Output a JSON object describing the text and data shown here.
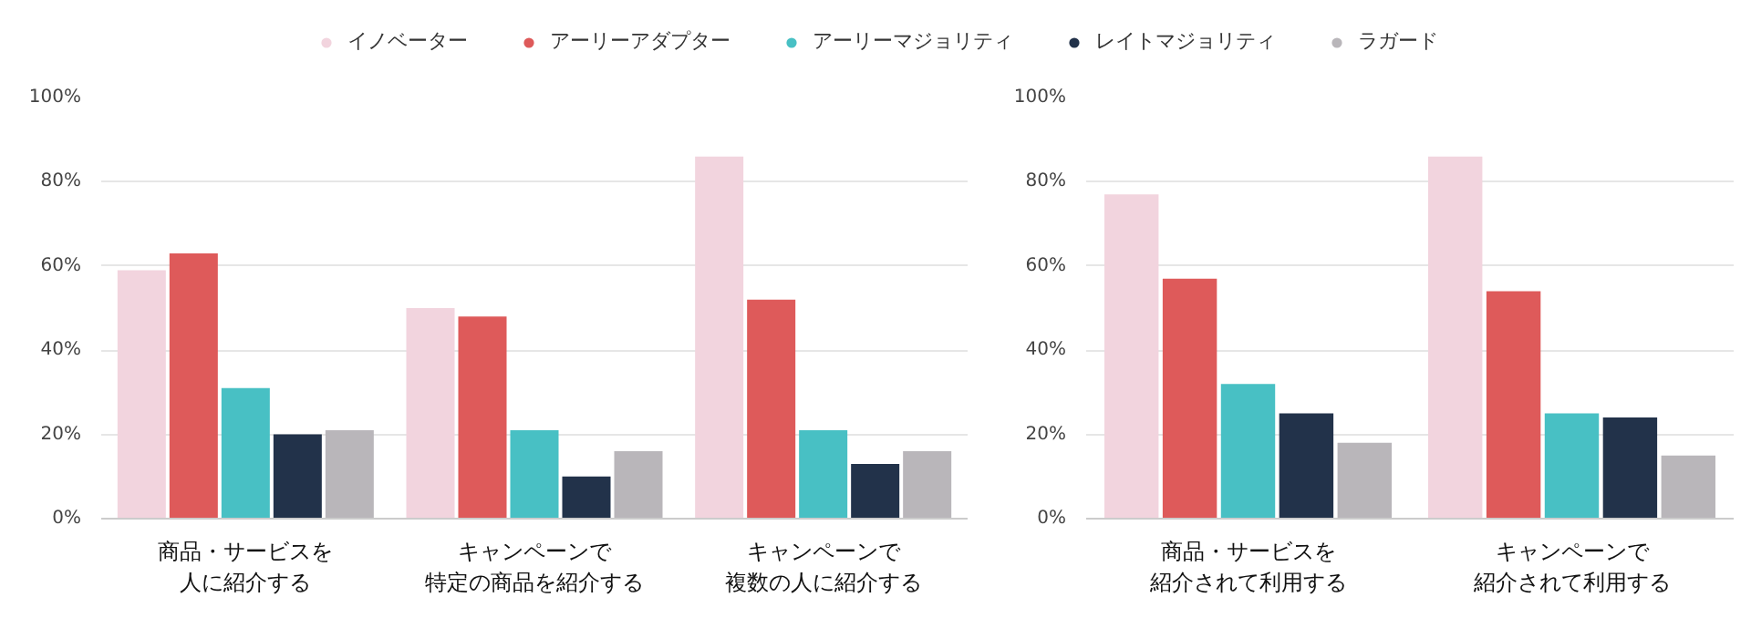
{
  "chart_data": [
    {
      "type": "bar",
      "categories": [
        "商品・サービスを人に紹介する",
        "キャンペーンで特定の商品を紹介する",
        "キャンペーンで複数の人に紹介する"
      ],
      "series": [
        {
          "name": "イノベーター",
          "color": "#f2d4de",
          "values": [
            59,
            50,
            86
          ]
        },
        {
          "name": "アーリーアダプター",
          "color": "#de5a5a",
          "values": [
            63,
            48,
            52
          ]
        },
        {
          "name": "アーリーマジョリティ",
          "color": "#48c0c4",
          "values": [
            31,
            21,
            21
          ]
        },
        {
          "name": "レイトマジョリティ",
          "color": "#22324a",
          "values": [
            20,
            10,
            13
          ]
        },
        {
          "name": "ラガード",
          "color": "#b9b6ba",
          "values": [
            21,
            16,
            16
          ]
        }
      ],
      "ylim": [
        0,
        100
      ],
      "yticks": [
        {
          "value": 0,
          "label": "0%"
        },
        {
          "value": 20,
          "label": "20%"
        },
        {
          "value": 40,
          "label": "40%"
        },
        {
          "value": 60,
          "label": "60%"
        },
        {
          "value": 80,
          "label": "80%"
        },
        {
          "value": 100,
          "label": "100%"
        }
      ],
      "grid": "y",
      "legend": "top"
    },
    {
      "type": "bar",
      "categories": [
        "商品・サービスを紹介されて利用する",
        "キャンペーンで紹介されて利用する"
      ],
      "series": [
        {
          "color": "#f2d4de",
          "values": [
            77,
            86
          ]
        },
        {
          "color": "#de5a5a",
          "values": [
            57,
            54
          ]
        },
        {
          "color": "#48c0c4",
          "values": [
            32,
            25
          ]
        },
        {
          "color": "#22324a",
          "values": [
            25,
            24
          ]
        },
        {
          "color": "#b9b6ba",
          "values": [
            18,
            15
          ]
        }
      ],
      "ylim": [
        0,
        100
      ],
      "yticks": [
        {
          "value": 0,
          "label": "0%"
        },
        {
          "value": 20,
          "label": "20%"
        },
        {
          "value": 40,
          "label": "40%"
        },
        {
          "value": 60,
          "label": "60%"
        },
        {
          "value": 80,
          "label": "80%"
        },
        {
          "value": 100,
          "label": "100%"
        }
      ],
      "grid": "y"
    }
  ]
}
